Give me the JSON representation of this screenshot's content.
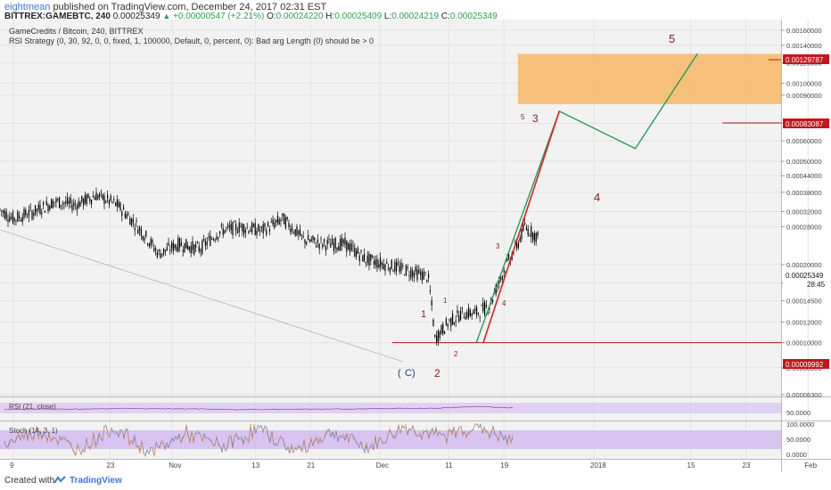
{
  "header": {
    "author": "eightmean",
    "published": "published on TradingView.com, December 24, 2017 02:31 EST",
    "symbol": "BITTREX:GAMEBTC, 240",
    "last": "0.00025349",
    "change": "+0.00000547 (+2.21%)",
    "o_label": "O:",
    "o": "0.00024220",
    "h_label": "H:",
    "h": "0.00025409",
    "l_label": "L:",
    "l": "0.00024219",
    "c_label": "C:",
    "c": "0.00025349"
  },
  "chart_data": [
    {
      "type": "line",
      "title": "GameCredits / Bitcoin, 240, BITTREX",
      "subtitle": "RSI Strategy (0, 30, 92, 0, 0, fixed, 1, 100000, Default, 0, percent, 0): Bad arg Length (0) should be > 0",
      "xlabel": "",
      "ylabel": "",
      "x_ticks": [
        "9",
        "23",
        "Nov",
        "13",
        "21",
        "Dec",
        "11",
        "19",
        "2018",
        "15",
        "23",
        "Feb"
      ],
      "y_ticks": [
        "0.00160000",
        "0.00140000",
        "0.00120000",
        "0.00100000",
        "0.00090000",
        "0.00070000",
        "0.00060000",
        "0.00050000",
        "0.00044000",
        "0.00038000",
        "0.00032000",
        "0.00028000",
        "0.00020000",
        "0.00017000",
        "0.00014500",
        "0.00012000",
        "0.00010000",
        "0.00008000",
        "0.00006300"
      ],
      "price_labels": {
        "zone_top": "0.00129787",
        "zone_bottom": "0.00083087",
        "current": "0.00025349",
        "countdown": "28:45",
        "support": "0.00009992"
      },
      "series": [
        {
          "x": [
            "Sep 30",
            "Oct 3",
            "Oct 6",
            "Oct 9",
            "Oct 12",
            "Oct 15",
            "Oct 18",
            "Oct 21",
            "Oct 24",
            "Oct 27",
            "Oct 30",
            "Nov 2",
            "Nov 5",
            "Nov 8",
            "Nov 11",
            "Nov 14",
            "Nov 17",
            "Nov 20",
            "Nov 23",
            "Nov 26",
            "Nov 29",
            "Dec 2",
            "Dec 5",
            "Dec 8",
            "Dec 9",
            "Dec 11",
            "Dec 13",
            "Dec 15",
            "Dec 17",
            "Dec 19",
            "Dec 21",
            "Dec 22",
            "Dec 24"
          ],
          "values": [
            0.00048,
            0.00041,
            0.00034,
            0.0003,
            0.00032,
            0.00035,
            0.00034,
            0.00037,
            0.00034,
            0.00028,
            0.00022,
            0.00024,
            0.00023,
            0.00027,
            0.00028,
            0.00027,
            0.0003,
            0.00025,
            0.00024,
            0.00024,
            0.00021,
            0.0002,
            0.00019,
            0.00018,
            0.000103,
            0.00012,
            0.00013,
            0.00013,
            0.00014,
            0.00019,
            0.00024,
            0.00028,
            0.000253
          ]
        }
      ],
      "projection": {
        "red_line": [
          [
            "Dec 16",
            0.0001
          ],
          [
            "Dec 27",
            0.00078
          ]
        ],
        "green_path": [
          [
            "Dec 15",
            0.0001
          ],
          [
            "Dec 27",
            0.00078
          ],
          [
            "Jan 7",
            0.00056
          ],
          [
            "Jan 16",
            0.0013
          ]
        ],
        "target_zone": {
          "from": "Dec 21",
          "to": "Feb 7",
          "low": 0.00083087,
          "high": 0.00129787
        },
        "support_line": 9.992e-05
      },
      "annotations": [
        "5",
        "3",
        "5",
        "4",
        "3",
        "1",
        "1",
        "2",
        "4",
        "C",
        "2"
      ]
    },
    {
      "type": "line",
      "title": "RSI (21, close)",
      "y_ticks": [
        "50.0000"
      ],
      "series": [
        {
          "values": [
            48,
            50,
            49,
            52,
            51,
            50,
            47,
            48,
            49,
            50,
            52,
            53,
            60,
            55
          ]
        }
      ]
    },
    {
      "type": "line",
      "title": "Stoch (14, 3, 1)",
      "y_ticks": [
        "100.0000",
        "50.0000",
        "0.0000"
      ],
      "series": [
        {
          "values": [
            40,
            80,
            20,
            90,
            10,
            70,
            30,
            85,
            15,
            75,
            25,
            90,
            60,
            95,
            40
          ]
        }
      ]
    }
  ],
  "footer": {
    "created": "Created with",
    "brand": "TradingView"
  }
}
